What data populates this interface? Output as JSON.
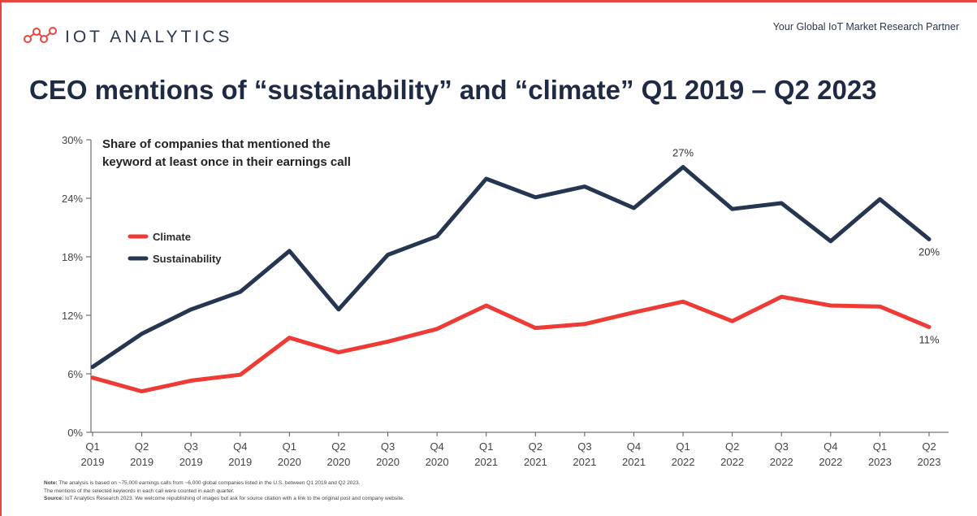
{
  "header": {
    "logo_text": "IOT ANALYTICS",
    "logo_icon": "network-nodes-icon",
    "tagline": "Your Global IoT Market Research Partner",
    "title": "CEO mentions of “sustainability” and “climate” Q1 2019 – Q2 2023"
  },
  "colors": {
    "accent": "#e8463f",
    "sustainability": "#243650",
    "climate": "#ee3b36",
    "axis": "#555555"
  },
  "chart_data": {
    "type": "line",
    "subtitle_lines": [
      "Share of companies that mentioned the",
      "keyword at least once in their earnings call"
    ],
    "categories": [
      [
        "Q1",
        "2019"
      ],
      [
        "Q2",
        "2019"
      ],
      [
        "Q3",
        "2019"
      ],
      [
        "Q4",
        "2019"
      ],
      [
        "Q1",
        "2020"
      ],
      [
        "Q2",
        "2020"
      ],
      [
        "Q3",
        "2020"
      ],
      [
        "Q4",
        "2020"
      ],
      [
        "Q1",
        "2021"
      ],
      [
        "Q2",
        "2021"
      ],
      [
        "Q3",
        "2021"
      ],
      [
        "Q4",
        "2021"
      ],
      [
        "Q1",
        "2022"
      ],
      [
        "Q2",
        "2022"
      ],
      [
        "Q3",
        "2022"
      ],
      [
        "Q4",
        "2022"
      ],
      [
        "Q1",
        "2023"
      ],
      [
        "Q2",
        "2023"
      ]
    ],
    "ylim": [
      0,
      30
    ],
    "yticks": [
      {
        "value": 0,
        "label": "0%"
      },
      {
        "value": 6,
        "label": "6%"
      },
      {
        "value": 12,
        "label": "12%"
      },
      {
        "value": 18,
        "label": "18%"
      },
      {
        "value": 24,
        "label": "24%"
      },
      {
        "value": 30,
        "label": "30%"
      }
    ],
    "legend_position": "left",
    "grid": false,
    "series": [
      {
        "name": "Climate",
        "color": "#ee3b36",
        "values": [
          5.6,
          4.2,
          5.3,
          5.9,
          9.7,
          8.2,
          9.3,
          10.6,
          13.0,
          10.7,
          11.1,
          12.3,
          13.4,
          11.4,
          13.9,
          13.0,
          12.9,
          10.8
        ]
      },
      {
        "name": "Sustainability",
        "color": "#243650",
        "values": [
          6.7,
          10.1,
          12.6,
          14.4,
          18.6,
          12.6,
          18.2,
          20.1,
          26.0,
          24.1,
          25.2,
          23.0,
          27.2,
          22.9,
          23.5,
          19.6,
          23.9,
          19.8
        ]
      }
    ],
    "annotations": [
      {
        "series": 1,
        "index": 12,
        "label": "27%"
      },
      {
        "series": 1,
        "index": 17,
        "label": "20%"
      },
      {
        "series": 0,
        "index": 17,
        "label": "11%"
      }
    ]
  },
  "notes": [
    {
      "label": "Note:",
      "text": " The analysis is based on ~75,000 earnings calls from ~6,000 global companies listed in the U.S. between Q1 2019 and Q2 2023."
    },
    {
      "label": "",
      "text": "The mentions of the selected keywords in each call were counted in each quarter."
    },
    {
      "label": "Source:",
      "text": " IoT Analytics Research 2023. We welcome republishing of images but ask for source citation with a link to the original post and company website."
    }
  ]
}
